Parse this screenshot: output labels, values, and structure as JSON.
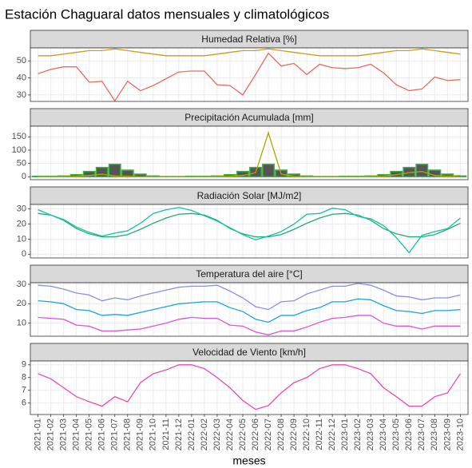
{
  "title": "Estación Chaguaral datos mensuales y climatológicos",
  "chart_data": [
    {
      "type": "line",
      "title": "Humedad Relativa [%]",
      "ylim": [
        26.2,
        57.6
      ],
      "yticks": [
        30,
        40,
        50
      ],
      "grid": true,
      "series": [
        {
          "type": "line",
          "color": "#d29a1a",
          "values": [
            53,
            53,
            54,
            55,
            56,
            56,
            57,
            56,
            55,
            54,
            53,
            53,
            53,
            53,
            54,
            55,
            56,
            56,
            57,
            56,
            55,
            54,
            53,
            53,
            53,
            53,
            54,
            55,
            56,
            56,
            57,
            56,
            55,
            54
          ]
        },
        {
          "type": "line",
          "color": "#f0685e",
          "values": [
            42.5,
            45,
            46.5,
            46.5,
            37.5,
            38,
            26.5,
            38,
            32.5,
            35.5,
            39.5,
            43.5,
            44,
            44,
            36,
            35.5,
            30,
            42,
            54.5,
            47,
            48.5,
            42,
            48,
            46,
            45.5,
            46,
            48,
            43,
            36,
            32.5,
            33.5,
            40.5,
            38.5,
            39
          ]
        }
      ]
    },
    {
      "type": "bar",
      "title": "Precipitación Acumulada [mm]",
      "ylim": [
        -11,
        190
      ],
      "yticks": [
        0,
        50,
        100,
        150
      ],
      "grid": true,
      "series": [
        {
          "type": "bar",
          "color": "#555555",
          "edgecolor": "#3cb043",
          "values": [
            2,
            2,
            3,
            8,
            20,
            35,
            47,
            25,
            10,
            3,
            1,
            1,
            2,
            2,
            3,
            8,
            20,
            35,
            47,
            25,
            10,
            3,
            1,
            1,
            2,
            2,
            3,
            8,
            20,
            35,
            47,
            25,
            10,
            3
          ]
        },
        {
          "type": "line",
          "color": "#a8a800",
          "values": [
            0,
            0,
            0,
            2,
            5,
            10,
            3,
            2,
            0,
            0,
            0,
            0,
            0,
            0,
            0,
            2,
            5,
            15,
            165,
            10,
            2,
            0,
            0,
            0,
            0,
            0,
            0,
            2,
            8,
            15,
            20,
            5,
            2,
            5
          ]
        }
      ]
    },
    {
      "type": "line",
      "title": "Radiación Solar [MJ/m2]",
      "ylim": [
        -2.5,
        33
      ],
      "yticks": [
        0,
        10,
        20,
        30
      ],
      "grid": true,
      "series": [
        {
          "type": "line",
          "color": "#1fae6e",
          "values": [
            27,
            26,
            22.5,
            17,
            13.5,
            11.5,
            11.5,
            13,
            16.5,
            20.5,
            24,
            26.5,
            27,
            26,
            22.5,
            17,
            13.5,
            11.5,
            11.5,
            13,
            16.5,
            20.5,
            24,
            26.5,
            27,
            26,
            22.5,
            17,
            13.5,
            11.5,
            11.5,
            13,
            16.5,
            20.5
          ]
        },
        {
          "type": "line",
          "color": "#12c2a2",
          "values": [
            29.5,
            26,
            23,
            18,
            14.5,
            12,
            14,
            15.5,
            20.5,
            27,
            29.5,
            31,
            29,
            25.5,
            22,
            17.5,
            13,
            9.5,
            12,
            15,
            20,
            26.5,
            27,
            30.5,
            29.5,
            25,
            23.5,
            19,
            11,
            1,
            12.5,
            15,
            17,
            24
          ]
        }
      ]
    },
    {
      "type": "line",
      "title": "Temperatura del aire [°C]",
      "ylim": [
        3.3,
        30.8
      ],
      "yticks": [
        10,
        20,
        30
      ],
      "grid": true,
      "series": [
        {
          "type": "line",
          "color": "#8c8cf0",
          "values": [
            29.5,
            29,
            27.5,
            25.5,
            24.5,
            21.5,
            23,
            22,
            24,
            25.5,
            27,
            28.5,
            29,
            29,
            29.5,
            26.5,
            23,
            18.5,
            17,
            21,
            21.5,
            25,
            27,
            29,
            29,
            30.5,
            29.5,
            27,
            24,
            23.5,
            22,
            23,
            23,
            24.5
          ]
        },
        {
          "type": "line",
          "color": "#1aa3e8",
          "values": [
            21.5,
            21,
            20,
            17,
            16.5,
            14,
            14.5,
            14,
            15.5,
            17,
            18.5,
            20,
            20.5,
            21,
            21,
            18,
            16,
            12,
            10.5,
            14,
            14,
            16.5,
            18,
            21,
            21,
            22.5,
            22,
            19,
            16.5,
            16,
            15,
            16.5,
            16.5,
            17
          ]
        },
        {
          "type": "line",
          "color": "#e052e0",
          "values": [
            13,
            12.5,
            12,
            9,
            8.5,
            6,
            6,
            6.5,
            7,
            8.5,
            10,
            12,
            13,
            12.5,
            12.5,
            9,
            8.5,
            5.5,
            4,
            6,
            6,
            8,
            10.5,
            12.5,
            13,
            14,
            14,
            10,
            8.5,
            8.5,
            7,
            8.5,
            8.5,
            8.5
          ]
        }
      ]
    },
    {
      "type": "line",
      "title": "Velocidad de Viento [km/h]",
      "ylim": [
        5.1,
        9.3
      ],
      "yticks": [
        6,
        7,
        8,
        9
      ],
      "grid": true,
      "xlabel": "meses",
      "categories": [
        "2021-01",
        "2021-02",
        "2021-03",
        "2021-04",
        "2021-05",
        "2021-06",
        "2021-07",
        "2021-08",
        "2021-09",
        "2021-10",
        "2021-11",
        "2021-12",
        "2022-01",
        "2022-02",
        "2022-03",
        "2022-04",
        "2022-05",
        "2022-06",
        "2022-07",
        "2022-08",
        "2022-09",
        "2022-10",
        "2022-11",
        "2022-12",
        "2023-01",
        "2023-02",
        "2023-03",
        "2023-04",
        "2023-05",
        "2023-06",
        "2023-07",
        "2023-08",
        "2023-09",
        "2023-10"
      ],
      "series": [
        {
          "type": "line",
          "color": "#f048b0",
          "values": [
            8.3,
            7.9,
            7.2,
            6.5,
            6.1,
            5.75,
            6.5,
            6.1,
            7.6,
            8.3,
            8.6,
            9,
            9,
            8.7,
            8,
            7.2,
            6.2,
            5.5,
            5.8,
            6.8,
            7.6,
            8,
            8.7,
            9,
            9,
            8.7,
            8.3,
            7.2,
            6.5,
            5.75,
            5.75,
            6.5,
            6.8,
            8.3
          ]
        }
      ]
    }
  ]
}
